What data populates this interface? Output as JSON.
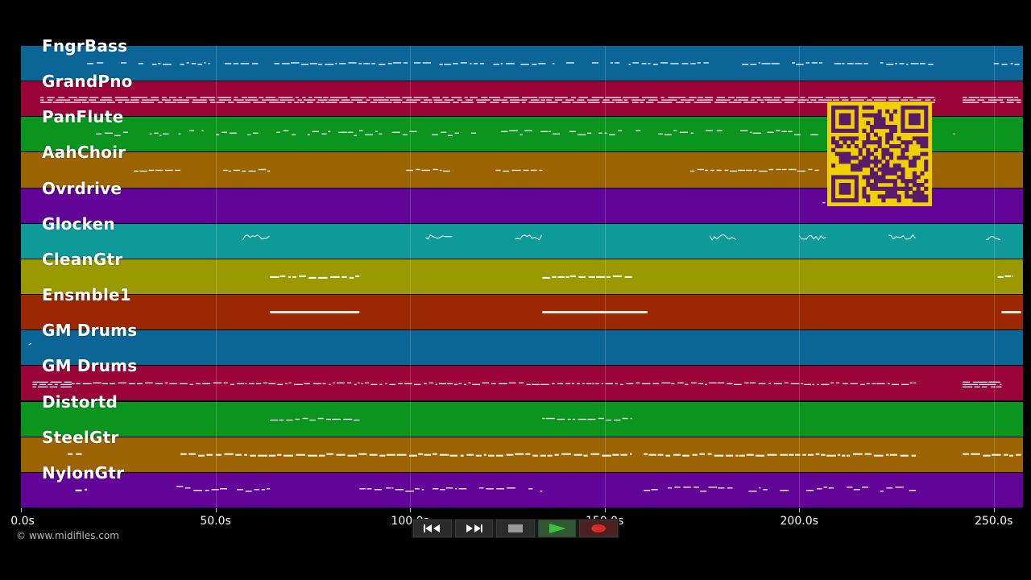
{
  "tracks": [
    {
      "label": "FngrBass",
      "color": "#0b6597"
    },
    {
      "label": "GrandPno",
      "color": "#9a0439"
    },
    {
      "label": "PanFlute",
      "color": "#0b951f"
    },
    {
      "label": "AahChoir",
      "color": "#9c6402"
    },
    {
      "label": "Ovrdrive",
      "color": "#620497"
    },
    {
      "label": "Glocken",
      "color": "#0f9a9a"
    },
    {
      "label": "CleanGtr",
      "color": "#9a9901"
    },
    {
      "label": "Ensmble1",
      "color": "#9b2800"
    },
    {
      "label": "GM Drums",
      "color": "#0b6597"
    },
    {
      "label": "GM Drums",
      "color": "#9a0439"
    },
    {
      "label": "Distortd",
      "color": "#0b951f"
    },
    {
      "label": "SteelGtr",
      "color": "#9c6402"
    },
    {
      "label": "NylonGtr",
      "color": "#620497"
    }
  ],
  "time_axis": {
    "max_seconds": 257.5,
    "ticks": [
      {
        "value": 0,
        "label": "0.0s"
      },
      {
        "value": 50,
        "label": "50.0s"
      },
      {
        "value": 100,
        "label": "100.0s"
      },
      {
        "value": 150,
        "label": "150.0s"
      },
      {
        "value": 200,
        "label": "200.0s"
      },
      {
        "value": 250,
        "label": "250.0s"
      }
    ]
  },
  "copyright": "© www.midifiles.com",
  "transport": {
    "buttons": [
      {
        "name": "rewind-button",
        "icon": "rewind-icon"
      },
      {
        "name": "fast-forward-button",
        "icon": "fast-forward-icon"
      },
      {
        "name": "stop-button",
        "icon": "stop-icon"
      },
      {
        "name": "play-button",
        "icon": "play-icon"
      },
      {
        "name": "record-button",
        "icon": "record-icon"
      }
    ],
    "colors": {
      "play": "#3fbf3f",
      "record": "#d92a2a",
      "stop": "#9a9a9a"
    }
  },
  "qr_colors": {
    "bg": "#f0d000",
    "fg": "#5a1a6a"
  },
  "note_color": "#ffffff"
}
